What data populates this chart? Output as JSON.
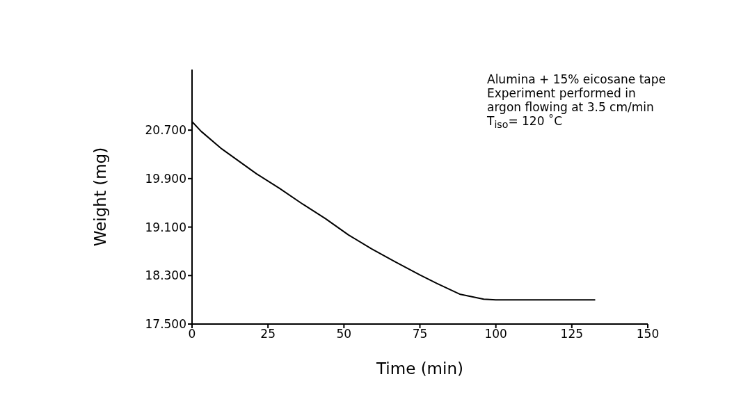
{
  "chart_data": {
    "type": "line",
    "xlabel": "Time (min)",
    "ylabel": "Weight (mg)",
    "annotations": [
      "Alumina + 15% eicosane tape",
      "Experiment performed in",
      "argon flowing at 3.5 cm/min",
      "T$_{iso}$= 120 ˚C"
    ],
    "x": [
      0,
      3,
      9.8,
      21.2,
      28.8,
      36.4,
      43.9,
      51.5,
      59.1,
      66.7,
      75,
      80.6,
      88.3,
      96,
      100,
      132.7
    ],
    "series": [
      {
        "color": "#000000",
        "values": [
          20.84,
          20.68,
          20.39,
          19.98,
          19.74,
          19.48,
          19.24,
          18.97,
          18.74,
          18.53,
          18.31,
          18.17,
          17.99,
          17.91,
          17.9,
          17.9
        ]
      }
    ],
    "xlim": [
      0,
      150
    ],
    "xticks": [
      0,
      25,
      50,
      75,
      100,
      125,
      150
    ],
    "ylim": [
      17.5,
      21.7
    ],
    "yticks": [
      {
        "value": 17.5,
        "label": "17.500"
      },
      {
        "value": 18.3,
        "label": "18.300"
      },
      {
        "value": 19.1,
        "label": "19.100"
      },
      {
        "value": 19.9,
        "label": "19.900"
      },
      {
        "value": 20.7,
        "label": "20.700"
      }
    ],
    "grid": false,
    "legend": false,
    "marker": "none",
    "line_style": "solid"
  }
}
